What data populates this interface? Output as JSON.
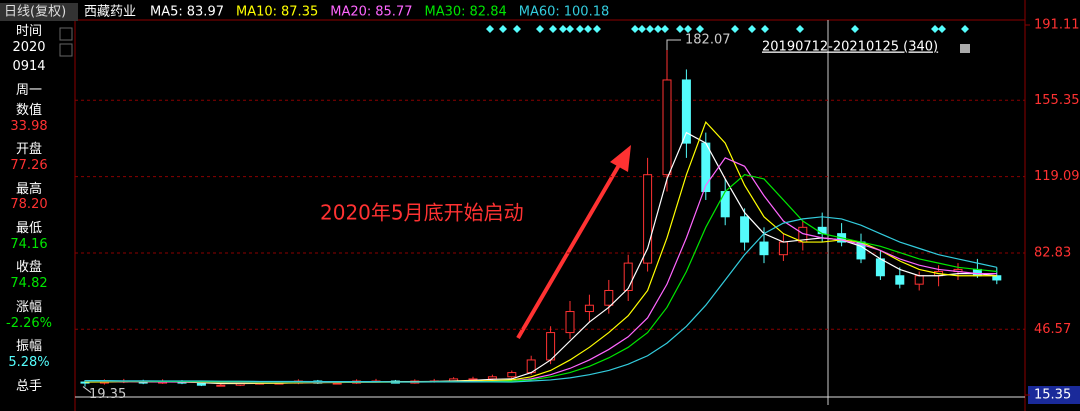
{
  "header": {
    "period": "日线(复权)",
    "stock": "西藏药业"
  },
  "sidebar": [
    {
      "text": "时间",
      "color": "#ffffff"
    },
    {
      "text": "2020",
      "color": "#ffffff"
    },
    {
      "text": "0914",
      "color": "#ffffff"
    },
    {
      "text": "周一",
      "color": "#ffffff"
    },
    {
      "text": "数值",
      "color": "#ffffff"
    },
    {
      "text": "33.98",
      "color": "#ff3232"
    },
    {
      "text": "开盘",
      "color": "#ffffff"
    },
    {
      "text": "77.26",
      "color": "#ff3232"
    },
    {
      "text": "最高",
      "color": "#ffffff"
    },
    {
      "text": "78.20",
      "color": "#ff3232"
    },
    {
      "text": "最低",
      "color": "#ffffff"
    },
    {
      "text": "74.16",
      "color": "#00e600"
    },
    {
      "text": "收盘",
      "color": "#ffffff"
    },
    {
      "text": "74.82",
      "color": "#00e600"
    },
    {
      "text": "涨幅",
      "color": "#ffffff"
    },
    {
      "text": "-2.26%",
      "color": "#00e600"
    },
    {
      "text": "振幅",
      "color": "#ffffff"
    },
    {
      "text": "5.28%",
      "color": "#54fcfc"
    },
    {
      "text": "总手",
      "color": "#ffffff"
    }
  ],
  "chart_data": {
    "type": "candlestick",
    "annotation": "2020年5月底开始启动",
    "range_label": "20190712-20210125 (340)",
    "up_color": "#ff3232",
    "down_color": "#54fcfc",
    "ylim": [
      15.35,
      191.11
    ],
    "yticks": [
      15.35,
      46.57,
      82.83,
      119.09,
      155.35,
      191.11
    ],
    "grid": true,
    "open": [
      21.5,
      21,
      22,
      22,
      21,
      22,
      21,
      20,
      20,
      21,
      21,
      21,
      22,
      21,
      21,
      22,
      22,
      21,
      22,
      22,
      23,
      23,
      24,
      26,
      32,
      45,
      55,
      58,
      65,
      78,
      120,
      165,
      135,
      112,
      100,
      88,
      82,
      88,
      95,
      92,
      88,
      80,
      72,
      68,
      72,
      74,
      75,
      72
    ],
    "close": [
      21,
      22,
      22,
      21,
      22,
      21,
      20,
      20,
      21,
      21,
      21,
      22,
      21,
      21,
      22,
      22,
      21,
      22,
      22,
      23,
      23,
      24,
      26,
      32,
      45,
      55,
      58,
      65,
      78,
      120,
      165,
      135,
      112,
      100,
      88,
      82,
      88,
      95,
      92,
      88,
      80,
      72,
      68,
      72,
      74,
      75,
      72,
      70
    ],
    "high": [
      22.5,
      22.8,
      23,
      22.6,
      22.8,
      22.4,
      21.5,
      21,
      21.8,
      21.9,
      22,
      22.8,
      22.5,
      21.8,
      22.8,
      23,
      22.5,
      22.8,
      23,
      23.8,
      24,
      25,
      27,
      34,
      48,
      60,
      63,
      70,
      82,
      128,
      182.07,
      170,
      140,
      118,
      104,
      95,
      92,
      98,
      102,
      97,
      92,
      84,
      76,
      74,
      77,
      78,
      80,
      76
    ],
    "low": [
      19.35,
      20.3,
      21,
      20.5,
      20.6,
      20.5,
      19.6,
      19.5,
      19.6,
      20.3,
      20.4,
      20.5,
      20.6,
      20.4,
      20.6,
      21.2,
      20.8,
      20.7,
      21.2,
      21.5,
      22.2,
      22.4,
      23.2,
      25,
      30,
      42,
      50,
      54,
      60,
      74,
      112,
      128,
      108,
      96,
      84,
      78,
      79,
      84,
      88,
      86,
      78,
      70,
      66,
      65,
      67,
      70,
      71,
      68
    ],
    "series": [
      {
        "name": "MA5:",
        "legend_value": 83.97,
        "color": "#ffffff",
        "values": [
          21.5,
          21.6,
          21.8,
          21.7,
          21.6,
          21.6,
          21.2,
          20.8,
          20.8,
          20.9,
          21,
          21.2,
          21.4,
          21.4,
          21.5,
          21.6,
          21.7,
          21.7,
          21.8,
          22,
          22.3,
          22.8,
          23,
          26,
          32,
          41,
          50,
          57,
          66,
          85,
          118,
          140,
          135,
          118,
          102,
          92,
          88,
          89,
          90,
          89,
          86,
          80,
          75,
          72,
          72,
          73,
          73,
          72
        ]
      },
      {
        "name": "MA10:",
        "legend_value": 87.35,
        "color": "#ffff00",
        "values": [
          21.6,
          21.6,
          21.7,
          21.7,
          21.6,
          21.5,
          21.4,
          21.2,
          21.1,
          21,
          21,
          21.1,
          21.2,
          21.3,
          21.4,
          21.5,
          21.6,
          21.6,
          21.7,
          21.8,
          22,
          22.2,
          22.5,
          24,
          27,
          32,
          38,
          45,
          53,
          65,
          90,
          120,
          145,
          135,
          115,
          100,
          92,
          88,
          88,
          89,
          88,
          84,
          79,
          75,
          73,
          72,
          72,
          72
        ]
      },
      {
        "name": "MA20:",
        "legend_value": 85.77,
        "color": "#ff66ff",
        "values": [
          21.8,
          21.8,
          21.7,
          21.7,
          21.6,
          21.6,
          21.5,
          21.4,
          21.3,
          21.3,
          21.3,
          21.3,
          21.3,
          21.4,
          21.4,
          21.4,
          21.5,
          21.5,
          21.6,
          21.6,
          21.7,
          21.8,
          22,
          23,
          25,
          28,
          32,
          37,
          43,
          52,
          68,
          90,
          115,
          128,
          124,
          110,
          98,
          92,
          90,
          89,
          87,
          84,
          80,
          77,
          75,
          74,
          73,
          73
        ]
      },
      {
        "name": "MA30:",
        "legend_value": 82.84,
        "color": "#00e600",
        "values": [
          22,
          22,
          21.9,
          21.9,
          21.8,
          21.8,
          21.7,
          21.6,
          21.6,
          21.5,
          21.5,
          21.5,
          21.5,
          21.5,
          21.5,
          21.5,
          21.5,
          21.5,
          21.6,
          21.6,
          21.6,
          21.7,
          22,
          22.5,
          24,
          26,
          29,
          33,
          38,
          45,
          57,
          74,
          95,
          112,
          120,
          118,
          108,
          98,
          92,
          90,
          88,
          86,
          83,
          80,
          78,
          76,
          75,
          74
        ]
      },
      {
        "name": "MA60:",
        "legend_value": 100.18,
        "color": "#33ccdd",
        "values": [
          22.2,
          22.2,
          22.1,
          22.1,
          22,
          22,
          22,
          21.9,
          21.9,
          21.8,
          21.8,
          21.8,
          21.7,
          21.7,
          21.7,
          21.7,
          21.6,
          21.6,
          21.6,
          21.6,
          21.6,
          21.6,
          21.5,
          22,
          22.5,
          23.5,
          25,
          27,
          30,
          34,
          40,
          48,
          58,
          70,
          82,
          92,
          97,
          99,
          100,
          99,
          96,
          92,
          88,
          85,
          82,
          80,
          78,
          76
        ]
      }
    ]
  }
}
